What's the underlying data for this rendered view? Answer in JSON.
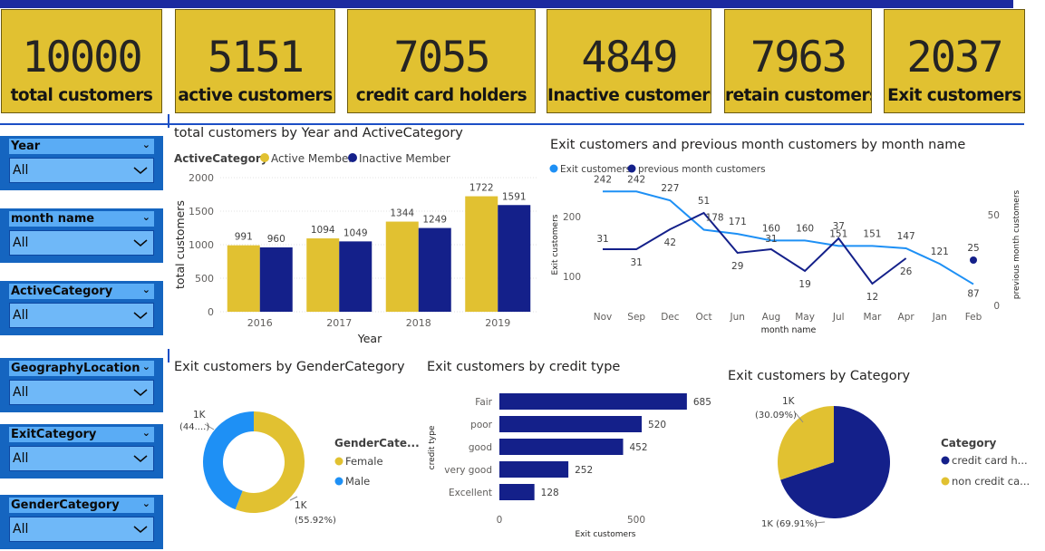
{
  "kpis": [
    {
      "value": "10000",
      "label": "total customers"
    },
    {
      "value": "5151",
      "label": "active customers"
    },
    {
      "value": "7055",
      "label": "credit card holders"
    },
    {
      "value": "4849",
      "label": "Inactive customers"
    },
    {
      "value": "7963",
      "label": "retain customers"
    },
    {
      "value": "2037",
      "label": "Exit customers"
    }
  ],
  "slicers": [
    {
      "title": "Year",
      "value": "All"
    },
    {
      "title": "month name",
      "value": "All"
    },
    {
      "title": "ActiveCategory",
      "value": "All"
    },
    {
      "title": "GeographyLocation",
      "value": "All"
    },
    {
      "title": "ExitCategory",
      "value": "All"
    },
    {
      "title": "GenderCategory",
      "value": "All"
    }
  ],
  "colors": {
    "gold": "#e1c131",
    "navy": "#14208a",
    "blue": "#1e90f5",
    "slicer": "#1565c0"
  },
  "chart_data": [
    {
      "type": "bar",
      "title": "total customers by Year and ActiveCategory",
      "legend_title": "ActiveCategory",
      "categories": [
        "2016",
        "2017",
        "2018",
        "2019"
      ],
      "series": [
        {
          "name": "Active Member",
          "values": [
            991,
            1094,
            1344,
            1722
          ]
        },
        {
          "name": "Inactive Member",
          "values": [
            960,
            1049,
            1249,
            1591
          ]
        }
      ],
      "xlabel": "Year",
      "ylabel": "total customers",
      "ylim": [
        0,
        2000
      ],
      "yticks": [
        "0",
        "500",
        "1000",
        "1500",
        "2000"
      ]
    },
    {
      "type": "line",
      "title": "Exit customers and previous month customers by month name",
      "categories": [
        "Nov",
        "Sep",
        "Dec",
        "Oct",
        "Jun",
        "Aug",
        "May",
        "Jul",
        "Mar",
        "Apr",
        "Jan",
        "Feb"
      ],
      "series": [
        {
          "name": "Exit customers",
          "axis": "left",
          "values": [
            242,
            242,
            227,
            178,
            171,
            160,
            160,
            151,
            151,
            147,
            121,
            87
          ]
        },
        {
          "name": "previous month customers",
          "axis": "right",
          "values": [
            31,
            31,
            42,
            51,
            29,
            31,
            19,
            37,
            12,
            26,
            null,
            25
          ]
        }
      ],
      "xlabel": "month name",
      "ylabel": "Exit customers",
      "y2label": "previous month customers",
      "yticks": [
        "100",
        "200"
      ],
      "y2ticks": [
        "0",
        "50"
      ]
    },
    {
      "type": "pie",
      "title": "Exit customers by GenderCategory",
      "legend_title": "GenderCate...",
      "slices": [
        {
          "name": "Female",
          "value": 55.92,
          "label": "1K",
          "pct": "(55.92%)"
        },
        {
          "name": "Male",
          "value": 44.08,
          "label": "1K",
          "pct": "(44....)"
        }
      ]
    },
    {
      "type": "bar",
      "orientation": "horizontal",
      "title": "Exit customers by credit type",
      "categories": [
        "Fair",
        "poor",
        "good",
        "very good",
        "Excellent"
      ],
      "values": [
        685,
        520,
        452,
        252,
        128
      ],
      "xlabel": "Exit customers",
      "ylabel": "credit type",
      "xticks": [
        "0",
        "500"
      ]
    },
    {
      "type": "pie",
      "title": "Exit customers by Category",
      "legend_title": "Category",
      "slices": [
        {
          "name": "credit card h...",
          "value": 69.91,
          "label": "1K",
          "pct": "(69.91%)"
        },
        {
          "name": "non credit ca...",
          "value": 30.09,
          "label": "1K",
          "pct": "(30.09%)"
        }
      ]
    }
  ]
}
